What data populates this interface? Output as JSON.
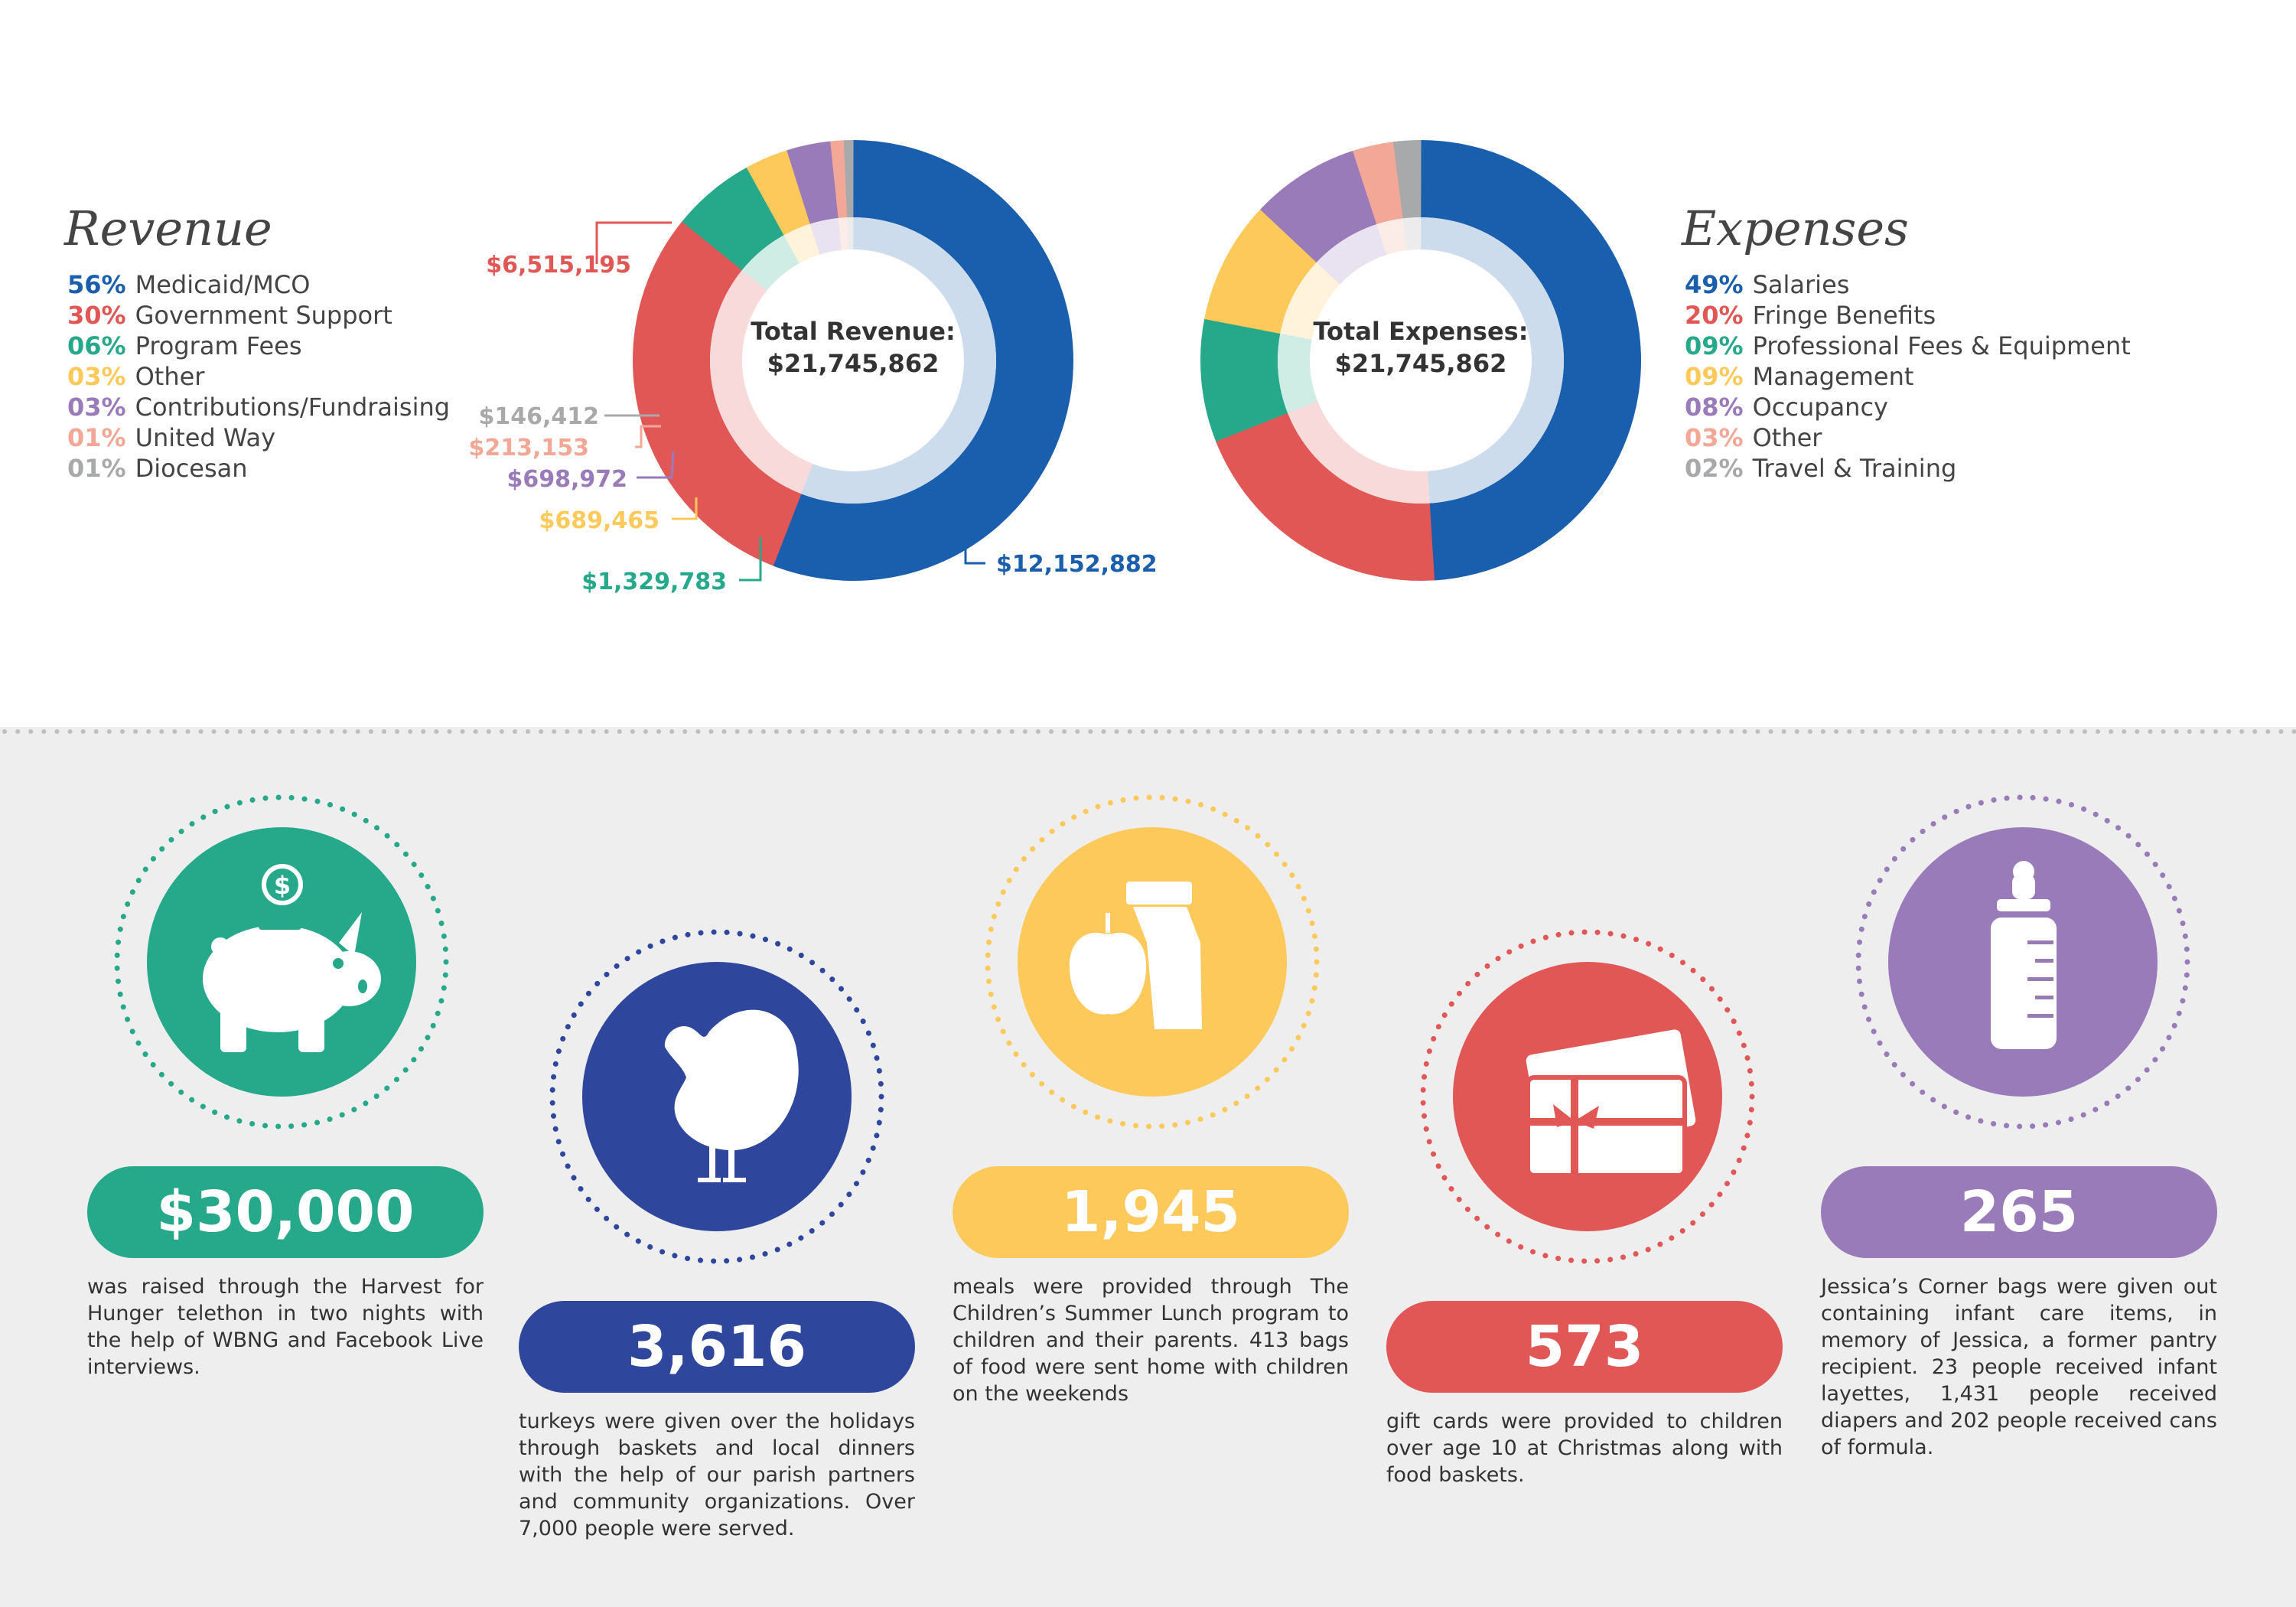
{
  "revenue": {
    "title": "Revenue",
    "center_label": "Total Revenue:",
    "center_value": "$21,745,862",
    "legend": [
      {
        "pct": "56%",
        "label": "Medicaid/MCO",
        "color": "#1a5fad"
      },
      {
        "pct": "30%",
        "label": "Government Support",
        "color": "#e15756"
      },
      {
        "pct": "06%",
        "label": "Program Fees",
        "color": "#26a98b"
      },
      {
        "pct": "03%",
        "label": "Other",
        "color": "#fdc95b"
      },
      {
        "pct": "03%",
        "label": "Contributions/Fundraising",
        "color": "#9a7bb9"
      },
      {
        "pct": "01%",
        "label": "United Way",
        "color": "#f3a796"
      },
      {
        "pct": "01%",
        "label": "Diocesan",
        "color": "#a8a9ab"
      }
    ],
    "callouts": {
      "medicaid": "$12,152,882",
      "government": "$6,515,195",
      "program": "$1,329,783",
      "other": "$689,465",
      "contributions": "$698,972",
      "united_way": "$213,153",
      "diocesan": "$146,412"
    }
  },
  "expenses": {
    "title": "Expenses",
    "center_label": "Total Expenses:",
    "center_value": "$21,745,862",
    "legend": [
      {
        "pct": "49%",
        "label": "Salaries",
        "color": "#1a5fad"
      },
      {
        "pct": "20%",
        "label": "Fringe Benefits",
        "color": "#e15756"
      },
      {
        "pct": "09%",
        "label": "Professional Fees & Equipment",
        "color": "#26a98b"
      },
      {
        "pct": "09%",
        "label": "Management",
        "color": "#fdc95b"
      },
      {
        "pct": "08%",
        "label": "Occupancy",
        "color": "#9a7bb9"
      },
      {
        "pct": "03%",
        "label": "Other",
        "color": "#f3a796"
      },
      {
        "pct": "02%",
        "label": "Travel & Training",
        "color": "#a8a9ab"
      }
    ]
  },
  "chart_data": [
    {
      "type": "pie",
      "categories": [
        "Medicaid/MCO",
        "Government Support",
        "Program Fees",
        "Other",
        "Contributions/Fundraising",
        "United Way",
        "Diocesan"
      ],
      "values": [
        12152882,
        6515195,
        1329783,
        689465,
        698972,
        213153,
        146412
      ],
      "percent_labels": [
        "56%",
        "30%",
        "06%",
        "03%",
        "03%",
        "01%",
        "01%"
      ],
      "colors": [
        "#1a5fad",
        "#e15756",
        "#26a98b",
        "#fdc95b",
        "#9a7bb9",
        "#f3a796",
        "#a8a9ab"
      ],
      "title": "Revenue",
      "center_text": "Total Revenue: $21,745,862"
    },
    {
      "type": "pie",
      "categories": [
        "Salaries",
        "Fringe Benefits",
        "Professional Fees & Equipment",
        "Management",
        "Occupancy",
        "Other",
        "Travel & Training"
      ],
      "values": [
        49,
        20,
        9,
        9,
        8,
        3,
        2
      ],
      "percent_labels": [
        "49%",
        "20%",
        "09%",
        "09%",
        "08%",
        "03%",
        "02%"
      ],
      "colors": [
        "#1a5fad",
        "#e15756",
        "#26a98b",
        "#fdc95b",
        "#9a7bb9",
        "#f3a796",
        "#a8a9ab"
      ],
      "title": "Expenses",
      "center_text": "Total Expenses: $21,745,862"
    }
  ],
  "stats": [
    {
      "value": "$30,000",
      "text": "was raised through the Harvest for Hunger telethon in two nights with the help of WBNG and Facebook Live interviews.",
      "color": "#26a98b",
      "icon": "piggy-bank-icon"
    },
    {
      "value": "3,616",
      "text": "turkeys were given over the holidays through baskets and local dinners with the help of our parish partners and community organizations. Over 7,000 people were served.",
      "color": "#2e479c",
      "icon": "turkey-icon"
    },
    {
      "value": "1,945",
      "text": "meals were provided through The Children’s Summer Lunch program to children and their parents. 413 bags of food were sent home with children on the weekends",
      "color": "#fdc95b",
      "icon": "lunch-bag-icon"
    },
    {
      "value": "573",
      "text": "gift cards were provided to children over age 10 at Christmas along with food baskets.",
      "color": "#e15756",
      "icon": "gift-card-icon"
    },
    {
      "value": "265",
      "text": "Jessica’s Corner bags were given out containing infant care items, in memory of Jessica, a former pantry recipient. 23 people received infant layettes, 1,431 people received diapers and 202 people received cans of formula.",
      "color": "#9a7bb9",
      "icon": "baby-bottle-icon"
    }
  ]
}
